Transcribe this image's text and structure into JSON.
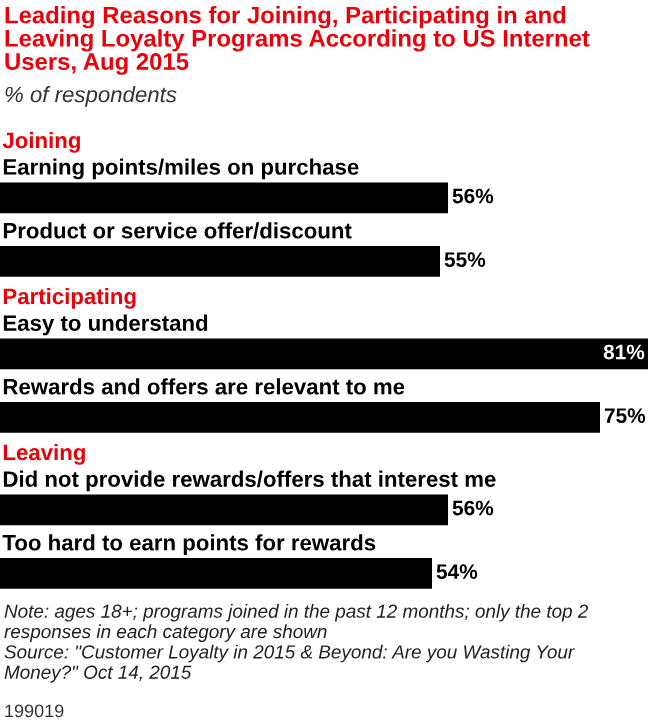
{
  "chart_data": {
    "type": "bar",
    "orientation": "horizontal",
    "title": "Leading Reasons for Joining, Participating in and Leaving Loyalty Programs According to US Internet Users, Aug 2015",
    "subtitle": "% of respondents",
    "categories": [
      "Earning points/miles on purchase",
      "Product or service offer/discount",
      "Easy to understand",
      "Rewards and offers are relevant to me",
      "Did not provide rewards/offers that interest me",
      "Too hard to earn points for rewards"
    ],
    "values": [
      56,
      55,
      81,
      75,
      56,
      54
    ],
    "color": "#000000",
    "value_labels": [
      "56%",
      "55%",
      "81%",
      "75%",
      "56%",
      "54%"
    ],
    "annotations": [
      "Joining",
      "Participating",
      "Leaving",
      "Note: ages 18+; programs joined in the past 12 months; only the top 2 responses in each category are shown",
      "Source: \"Customer Loyalty in 2015 & Beyond: Are you Wasting Your Money?\" Oct 14, 2015",
      "199019"
    ]
  }
}
